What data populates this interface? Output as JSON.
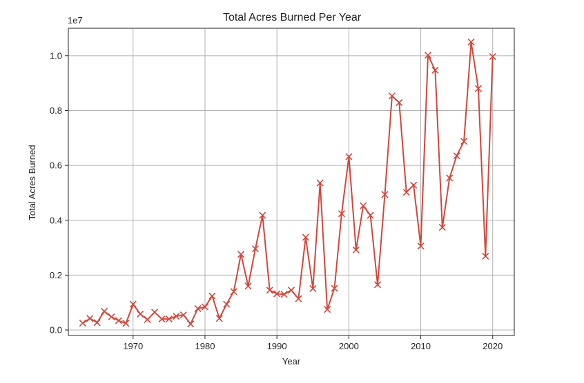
{
  "chart_data": {
    "type": "line",
    "title": "Total Acres Burned Per Year",
    "xlabel": "Year",
    "ylabel": "Total Acres Burned",
    "y_offset_label": "1e7",
    "xlim": [
      1961,
      2023
    ],
    "ylim": [
      -0.02,
      1.1
    ],
    "y_scale_note": "values in units of 1e7 acres",
    "grid": true,
    "marker": "x",
    "line_color": "#d2473a",
    "x_ticks": [
      1970,
      1980,
      1990,
      2000,
      2010,
      2020
    ],
    "x_tick_labels": [
      "1970",
      "1980",
      "1990",
      "2000",
      "2010",
      "2020"
    ],
    "y_ticks": [
      0.0,
      0.2,
      0.4,
      0.6,
      0.8,
      1.0
    ],
    "y_tick_labels": [
      "0.0",
      "0.2",
      "0.4",
      "0.6",
      "0.8",
      "1.0"
    ],
    "x": [
      1963,
      1964,
      1965,
      1966,
      1967,
      1968,
      1969,
      1970,
      1971,
      1972,
      1973,
      1974,
      1975,
      1976,
      1977,
      1978,
      1979,
      1980,
      1981,
      1982,
      1983,
      1984,
      1985,
      1986,
      1987,
      1988,
      1989,
      1990,
      1991,
      1992,
      1993,
      1994,
      1995,
      1996,
      1997,
      1998,
      1999,
      2000,
      2001,
      2002,
      2003,
      2004,
      2005,
      2006,
      2007,
      2008,
      2009,
      2010,
      2011,
      2012,
      2013,
      2014,
      2015,
      2016,
      2017,
      2018,
      2019,
      2020
    ],
    "values": [
      0.025,
      0.042,
      0.027,
      0.068,
      0.048,
      0.034,
      0.024,
      0.094,
      0.058,
      0.038,
      0.065,
      0.04,
      0.04,
      0.05,
      0.055,
      0.022,
      0.078,
      0.084,
      0.124,
      0.042,
      0.094,
      0.14,
      0.276,
      0.16,
      0.296,
      0.418,
      0.145,
      0.132,
      0.13,
      0.145,
      0.114,
      0.338,
      0.151,
      0.536,
      0.075,
      0.152,
      0.424,
      0.632,
      0.292,
      0.453,
      0.418,
      0.165,
      0.494,
      0.853,
      0.829,
      0.502,
      0.528,
      0.306,
      1.002,
      0.947,
      0.374,
      0.554,
      0.635,
      0.688,
      1.05,
      0.88,
      0.269,
      0.997
    ]
  }
}
